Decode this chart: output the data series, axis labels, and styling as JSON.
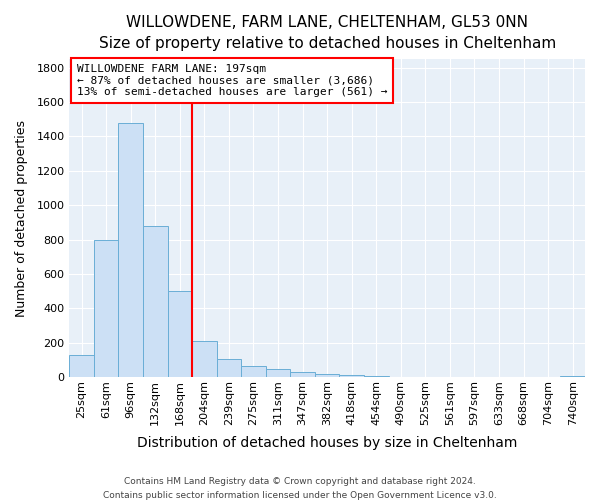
{
  "title": "WILLOWDENE, FARM LANE, CHELTENHAM, GL53 0NN",
  "subtitle": "Size of property relative to detached houses in Cheltenham",
  "xlabel": "Distribution of detached houses by size in Cheltenham",
  "ylabel": "Number of detached properties",
  "bar_labels": [
    "25sqm",
    "61sqm",
    "96sqm",
    "132sqm",
    "168sqm",
    "204sqm",
    "239sqm",
    "275sqm",
    "311sqm",
    "347sqm",
    "382sqm",
    "418sqm",
    "454sqm",
    "490sqm",
    "525sqm",
    "561sqm",
    "597sqm",
    "633sqm",
    "668sqm",
    "704sqm",
    "740sqm"
  ],
  "bar_values": [
    130,
    800,
    1480,
    880,
    500,
    210,
    105,
    65,
    45,
    30,
    20,
    10,
    5,
    3,
    2,
    1,
    1,
    1,
    1,
    1,
    5
  ],
  "bar_color": "#cce0f5",
  "bar_edgecolor": "#6aaed6",
  "vline_x_index": 4.5,
  "vline_color": "red",
  "annotation_text": "WILLOWDENE FARM LANE: 197sqm\n← 87% of detached houses are smaller (3,686)\n13% of semi-detached houses are larger (561) →",
  "annotation_box_edgecolor": "red",
  "ylim": [
    0,
    1850
  ],
  "yticks": [
    0,
    200,
    400,
    600,
    800,
    1000,
    1200,
    1400,
    1600,
    1800
  ],
  "footer1": "Contains HM Land Registry data © Crown copyright and database right 2024.",
  "footer2": "Contains public sector information licensed under the Open Government Licence v3.0.",
  "fig_bg_color": "#ffffff",
  "plot_bg_color": "#e8f0f8",
  "grid_color": "#ffffff",
  "title_fontsize": 11,
  "subtitle_fontsize": 10,
  "xlabel_fontsize": 10,
  "ylabel_fontsize": 9,
  "tick_fontsize": 8,
  "annotation_fontsize": 8,
  "footer_fontsize": 6.5
}
